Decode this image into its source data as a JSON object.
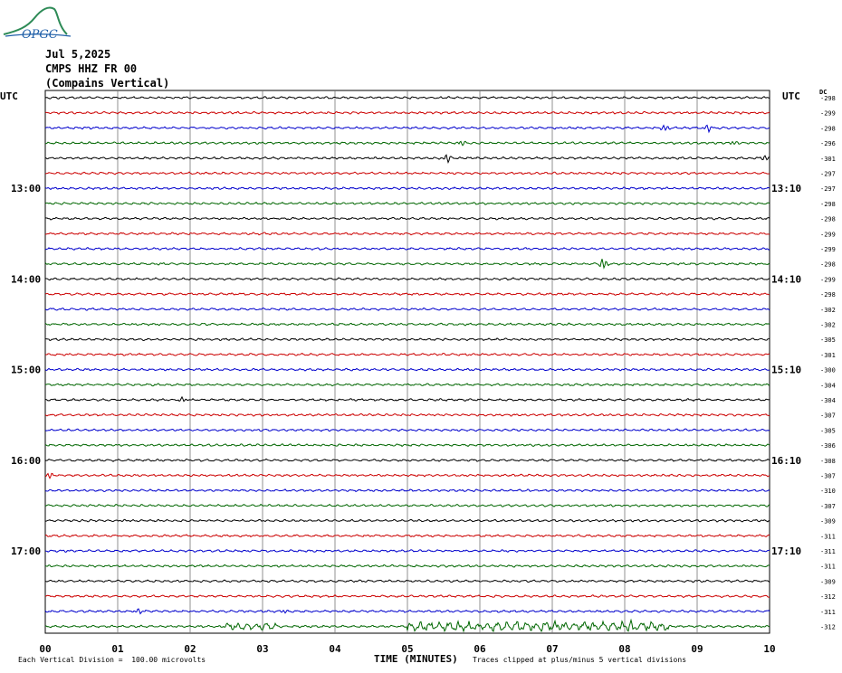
{
  "header": {
    "date": "Jul 5,2025",
    "station": "CMPS HHZ FR 00",
    "location": "(Compains Vertical)"
  },
  "logo": {
    "text": "OPGC"
  },
  "corner_labels": {
    "left": "UTC",
    "right": "UTC",
    "dc": "DC"
  },
  "footer": {
    "scale_note": "Each Vertical Division =  100.00 microvolts",
    "x_title": "TIME (MINUTES)",
    "clip_note": "Traces clipped at plus/minus 5 vertical divisions"
  },
  "chart_data": {
    "type": "line",
    "title": "",
    "xlabel": "TIME (MINUTES)",
    "x_ticks": [
      "00",
      "01",
      "02",
      "03",
      "04",
      "05",
      "06",
      "07",
      "08",
      "09",
      "10"
    ],
    "xlim": [
      0,
      10
    ],
    "trace_colors": [
      "#000000",
      "#cc0000",
      "#0000cc",
      "#006600"
    ],
    "left_time_labels": [
      {
        "row": 6,
        "label": "13:00"
      },
      {
        "row": 12,
        "label": "14:00"
      },
      {
        "row": 18,
        "label": "15:00"
      },
      {
        "row": 24,
        "label": "16:00"
      },
      {
        "row": 30,
        "label": "17:00"
      }
    ],
    "right_time_labels": [
      {
        "row": 6,
        "label": "13:10"
      },
      {
        "row": 12,
        "label": "14:10"
      },
      {
        "row": 18,
        "label": "15:10"
      },
      {
        "row": 24,
        "label": "16:10"
      },
      {
        "row": 30,
        "label": "17:10"
      }
    ],
    "dc_offsets": [
      -298,
      -299,
      -298,
      -296,
      -301,
      -297,
      -297,
      -298,
      -298,
      -299,
      -299,
      -298,
      -299,
      -298,
      -302,
      -302,
      -305,
      -301,
      -300,
      -304,
      -304,
      -307,
      -305,
      -306,
      -308,
      -307,
      -310,
      -307,
      -309,
      -311,
      -311,
      -311,
      -309,
      -312,
      -311,
      -312
    ],
    "events": [
      {
        "row": 2,
        "minute": 8.55,
        "amp": 4
      },
      {
        "row": 2,
        "minute": 9.15,
        "amp": 5
      },
      {
        "row": 3,
        "minute": 5.75,
        "amp": 3
      },
      {
        "row": 3,
        "minute": 9.5,
        "amp": 3
      },
      {
        "row": 4,
        "minute": 5.55,
        "amp": 6
      },
      {
        "row": 4,
        "minute": 9.95,
        "amp": 4
      },
      {
        "row": 11,
        "minute": 7.7,
        "amp": 7
      },
      {
        "row": 20,
        "minute": 1.9,
        "amp": 3
      },
      {
        "row": 25,
        "minute": 0.05,
        "amp": 4
      },
      {
        "row": 34,
        "minute": 1.3,
        "amp": 3
      },
      {
        "row": 34,
        "minute": 3.3,
        "amp": 2
      },
      {
        "row": 35,
        "minute": 8.1,
        "amp": 8
      }
    ],
    "noisy_segments": [
      {
        "row": 35,
        "from": 2.5,
        "to": 3.2,
        "amp": 2
      },
      {
        "row": 35,
        "from": 5.0,
        "to": 8.6,
        "amp": 3
      }
    ]
  }
}
